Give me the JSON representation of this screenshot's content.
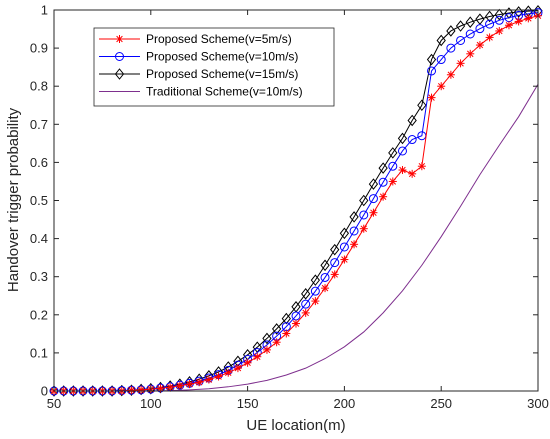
{
  "chart_data": {
    "type": "line",
    "title": "",
    "xlabel": "UE location(m)",
    "ylabel": "Handover trigger probability",
    "xlim": [
      50,
      300
    ],
    "ylim": [
      0,
      1
    ],
    "x_ticks": [
      "50",
      "100",
      "150",
      "200",
      "250",
      "300"
    ],
    "y_ticks": [
      "0",
      "0.1",
      "0.2",
      "0.3",
      "0.4",
      "0.5",
      "0.6",
      "0.7",
      "0.8",
      "0.9",
      "1"
    ],
    "grid": false,
    "legend_position": "top-left",
    "series": [
      {
        "name": "Proposed Scheme(v=5m/s)",
        "color": "#ff0000",
        "marker": "asterisk",
        "x": [
          50,
          55,
          60,
          65,
          70,
          75,
          80,
          85,
          90,
          95,
          100,
          105,
          110,
          115,
          120,
          125,
          130,
          135,
          140,
          145,
          150,
          155,
          160,
          165,
          170,
          175,
          180,
          185,
          190,
          195,
          200,
          205,
          210,
          215,
          220,
          225,
          230,
          235,
          240,
          245,
          250,
          255,
          260,
          265,
          270,
          275,
          280,
          285,
          290,
          295,
          300
        ],
        "y": [
          0.0,
          0.0,
          0.0,
          0.0,
          0.0,
          0.0,
          0.0,
          0.0,
          0.002,
          0.003,
          0.005,
          0.007,
          0.01,
          0.014,
          0.018,
          0.023,
          0.03,
          0.038,
          0.048,
          0.06,
          0.074,
          0.09,
          0.108,
          0.128,
          0.151,
          0.177,
          0.205,
          0.236,
          0.27,
          0.306,
          0.345,
          0.385,
          0.426,
          0.468,
          0.51,
          0.55,
          0.58,
          0.57,
          0.59,
          0.77,
          0.8,
          0.83,
          0.86,
          0.885,
          0.908,
          0.928,
          0.945,
          0.96,
          0.97,
          0.978,
          0.985
        ]
      },
      {
        "name": "Proposed Scheme(v=10m/s)",
        "color": "#0000ff",
        "marker": "circle",
        "x": [
          50,
          55,
          60,
          65,
          70,
          75,
          80,
          85,
          90,
          95,
          100,
          105,
          110,
          115,
          120,
          125,
          130,
          135,
          140,
          145,
          150,
          155,
          160,
          165,
          170,
          175,
          180,
          185,
          190,
          195,
          200,
          205,
          210,
          215,
          220,
          225,
          230,
          235,
          240,
          245,
          250,
          255,
          260,
          265,
          270,
          275,
          280,
          285,
          290,
          295,
          300
        ],
        "y": [
          0.0,
          0.0,
          0.0,
          0.0,
          0.0,
          0.0,
          0.0,
          0.001,
          0.002,
          0.003,
          0.005,
          0.008,
          0.011,
          0.015,
          0.02,
          0.026,
          0.034,
          0.043,
          0.054,
          0.068,
          0.083,
          0.101,
          0.121,
          0.144,
          0.169,
          0.197,
          0.228,
          0.262,
          0.298,
          0.337,
          0.378,
          0.42,
          0.462,
          0.505,
          0.548,
          0.59,
          0.63,
          0.66,
          0.67,
          0.84,
          0.87,
          0.9,
          0.92,
          0.937,
          0.951,
          0.963,
          0.973,
          0.98,
          0.986,
          0.99,
          0.993
        ]
      },
      {
        "name": "Proposed Scheme(v=15m/s)",
        "color": "#000000",
        "marker": "diamond",
        "x": [
          50,
          55,
          60,
          65,
          70,
          75,
          80,
          85,
          90,
          95,
          100,
          105,
          110,
          115,
          120,
          125,
          130,
          135,
          140,
          145,
          150,
          155,
          160,
          165,
          170,
          175,
          180,
          185,
          190,
          195,
          200,
          205,
          210,
          215,
          220,
          225,
          230,
          235,
          240,
          245,
          250,
          255,
          260,
          265,
          270,
          275,
          280,
          285,
          290,
          295,
          300
        ],
        "y": [
          0.0,
          0.0,
          0.0,
          0.0,
          0.0,
          0.0,
          0.0,
          0.001,
          0.002,
          0.004,
          0.006,
          0.009,
          0.013,
          0.018,
          0.024,
          0.031,
          0.04,
          0.05,
          0.063,
          0.078,
          0.095,
          0.115,
          0.138,
          0.163,
          0.19,
          0.221,
          0.255,
          0.291,
          0.33,
          0.371,
          0.414,
          0.457,
          0.5,
          0.543,
          0.585,
          0.625,
          0.663,
          0.71,
          0.75,
          0.87,
          0.92,
          0.945,
          0.958,
          0.968,
          0.976,
          0.983,
          0.988,
          0.992,
          0.995,
          0.997,
          0.998
        ]
      },
      {
        "name": "Traditional Scheme(v=10m/s)",
        "color": "#7e2f8e",
        "marker": "none",
        "x": [
          50,
          60,
          70,
          80,
          90,
          100,
          110,
          120,
          130,
          140,
          150,
          160,
          170,
          180,
          190,
          200,
          210,
          220,
          230,
          240,
          250,
          260,
          270,
          280,
          290,
          300
        ],
        "y": [
          0.0,
          0.0,
          0.0,
          0.0,
          0.0,
          0.0,
          0.001,
          0.003,
          0.006,
          0.011,
          0.018,
          0.028,
          0.042,
          0.06,
          0.085,
          0.116,
          0.155,
          0.205,
          0.263,
          0.33,
          0.405,
          0.485,
          0.568,
          0.645,
          0.72,
          0.805
        ]
      }
    ]
  }
}
